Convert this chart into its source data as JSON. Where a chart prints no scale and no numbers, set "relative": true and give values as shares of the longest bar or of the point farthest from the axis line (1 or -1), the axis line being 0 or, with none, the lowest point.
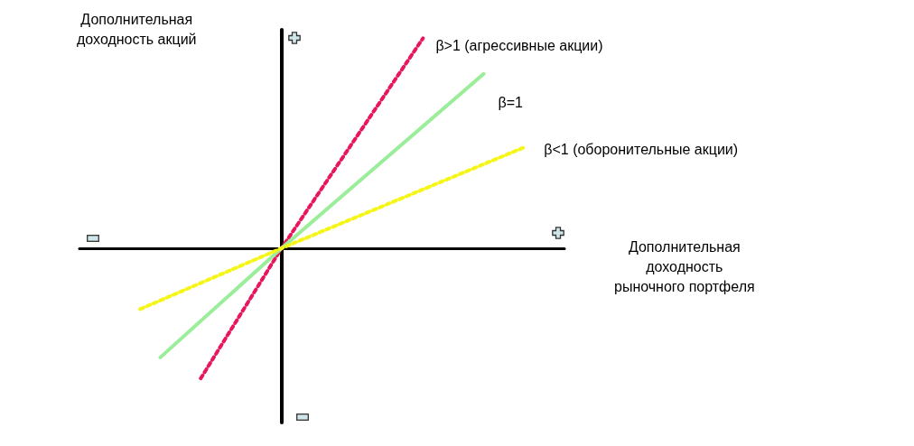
{
  "chart_data": {
    "type": "line",
    "relative": true,
    "xlabel": "Дополнительная\nдоходность\nрыночного портфеля",
    "ylabel": "Дополнительная\nдоходность акций",
    "categories": [
      null,
      null,
      null,
      null,
      null,
      null,
      null,
      null,
      null,
      null,
      null,
      null,
      null,
      null,
      null,
      null,
      null,
      null,
      null,
      null,
      null,
      null,
      null,
      null,
      null
    ],
    "series": [
      {
        "name": "β>1 (агрессивные акции)",
        "color": "#e8175d",
        "line_style": "dotted",
        "values": [
          null,
          null,
          null,
          null,
          null,
          null,
          -0.62,
          null,
          null,
          null,
          0,
          null,
          null,
          null,
          null,
          null,
          null,
          1,
          null,
          null,
          null,
          null,
          null,
          null,
          null
        ]
      },
      {
        "name": "β=1",
        "color": "#9aee9a",
        "line_style": "solid",
        "values": [
          null,
          null,
          null,
          null,
          -0.52,
          null,
          null,
          null,
          null,
          null,
          0,
          null,
          null,
          null,
          null,
          null,
          null,
          null,
          null,
          null,
          0.83,
          null,
          null,
          null,
          null
        ]
      },
      {
        "name": "β<1 (оборонительные акции)",
        "color": "#f5f516",
        "line_style": "dotted",
        "values": [
          null,
          null,
          null,
          -0.29,
          null,
          null,
          null,
          null,
          null,
          null,
          0,
          null,
          null,
          null,
          null,
          null,
          null,
          null,
          null,
          null,
          null,
          null,
          0.48,
          null,
          null
        ]
      }
    ],
    "grid": false,
    "legend": false,
    "marker": "none"
  }
}
